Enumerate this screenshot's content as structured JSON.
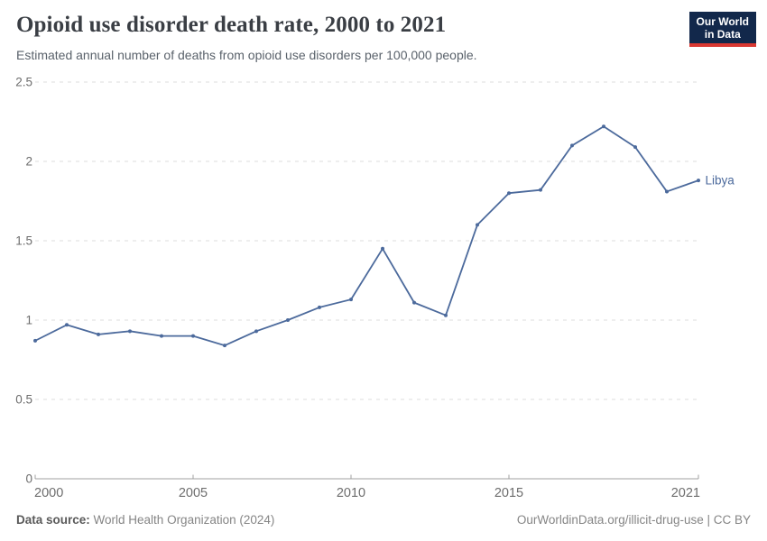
{
  "header": {
    "title": "Opioid use disorder death rate, 2000 to 2021",
    "subtitle": "Estimated annual number of deaths from opioid use disorders per 100,000 people."
  },
  "logo": {
    "line1": "Our World",
    "line2": "in Data"
  },
  "footer": {
    "source_label": "Data source:",
    "source_value": " World Health Organization (2024)",
    "link": "OurWorldinData.org/illicit-drug-use | CC BY"
  },
  "colors": {
    "series_blue": "#4C6A9C",
    "gridline": "#dcdcdc",
    "axis": "#a1a1a1",
    "tick_text": "#6d6d6d",
    "logo_bg": "#12284B",
    "logo_accent": "#D93832"
  },
  "chart_data": {
    "type": "line",
    "title": "Opioid use disorder death rate, 2000 to 2021",
    "subtitle": "Estimated annual number of deaths from opioid use disorders per 100,000 people.",
    "x": [
      2000,
      2001,
      2002,
      2003,
      2004,
      2005,
      2006,
      2007,
      2008,
      2009,
      2010,
      2011,
      2012,
      2013,
      2014,
      2015,
      2016,
      2017,
      2018,
      2019,
      2020,
      2021
    ],
    "series": [
      {
        "name": "Libya",
        "color": "#4C6A9C",
        "values": [
          0.87,
          0.97,
          0.91,
          0.93,
          0.9,
          0.9,
          0.84,
          0.93,
          1.0,
          1.08,
          1.13,
          1.45,
          1.11,
          1.03,
          1.6,
          1.8,
          1.82,
          2.1,
          2.22,
          2.09,
          1.81,
          1.88
        ]
      }
    ],
    "xlabel": "",
    "ylabel": "",
    "ylim": [
      0,
      2.5
    ],
    "xlim": [
      2000,
      2021
    ],
    "grid": "horizontal-dashed",
    "legend_position": "end-of-line-label",
    "yticks": [
      {
        "value": 0,
        "label": "0"
      },
      {
        "value": 0.5,
        "label": "0.5"
      },
      {
        "value": 1,
        "label": "1"
      },
      {
        "value": 1.5,
        "label": "1.5"
      },
      {
        "value": 2,
        "label": "2"
      },
      {
        "value": 2.5,
        "label": "2.5"
      }
    ],
    "xticks": [
      {
        "value": 2000,
        "label": "2000"
      },
      {
        "value": 2005,
        "label": "2005"
      },
      {
        "value": 2010,
        "label": "2010"
      },
      {
        "value": 2015,
        "label": "2015"
      },
      {
        "value": 2021,
        "label": "2021"
      }
    ]
  }
}
